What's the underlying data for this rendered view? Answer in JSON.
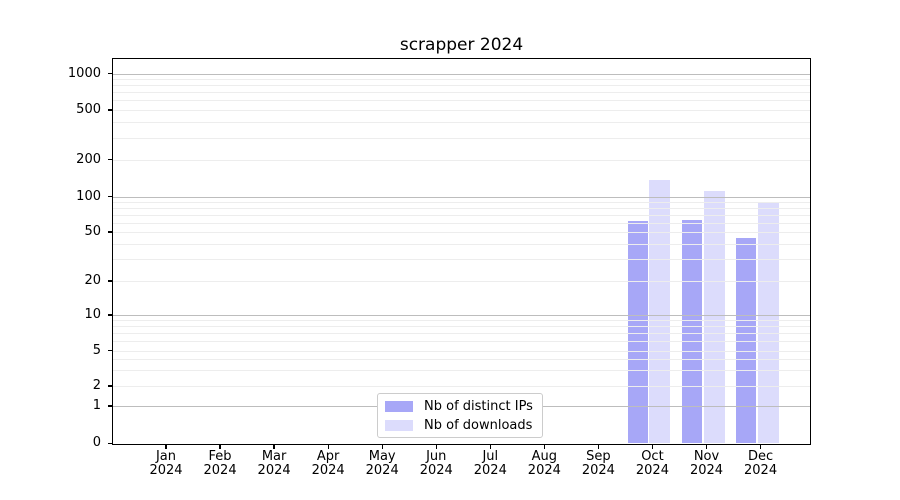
{
  "chart_data": {
    "type": "bar",
    "title": "scrapper 2024",
    "categories": [
      "Jan",
      "Feb",
      "Mar",
      "Apr",
      "May",
      "Jun",
      "Jul",
      "Aug",
      "Sep",
      "Oct",
      "Nov",
      "Dec"
    ],
    "x_tick_year_line": "2024",
    "series": [
      {
        "name": "Nb of distinct IPs",
        "key": "distinct-ips",
        "color": "rgba(80,80,240,0.5)",
        "color_on_white": "#a7a7f7",
        "values": [
          0,
          0,
          0,
          0,
          0,
          0,
          0,
          0,
          0,
          62,
          63,
          45
        ]
      },
      {
        "name": "Nb of downloads",
        "key": "downloads",
        "color": "rgba(80,80,240,0.2)",
        "color_on_white": "#dcdcfc",
        "values": [
          0,
          0,
          0,
          0,
          0,
          0,
          0,
          0,
          0,
          135,
          110,
          90
        ]
      }
    ],
    "y_ticks": [
      0,
      1,
      2,
      5,
      10,
      20,
      50,
      100,
      200,
      500,
      1000
    ],
    "y_scale": "log-like (linear 0-1, logarithmic above)",
    "ylim": [
      0,
      1300
    ],
    "xlabel": "",
    "ylabel": "",
    "grid": {
      "show": "horizontal major+minor",
      "major_color": "#bdbdbd",
      "minor_color": "#ededed"
    },
    "legend_position": "lower center inside plot"
  }
}
